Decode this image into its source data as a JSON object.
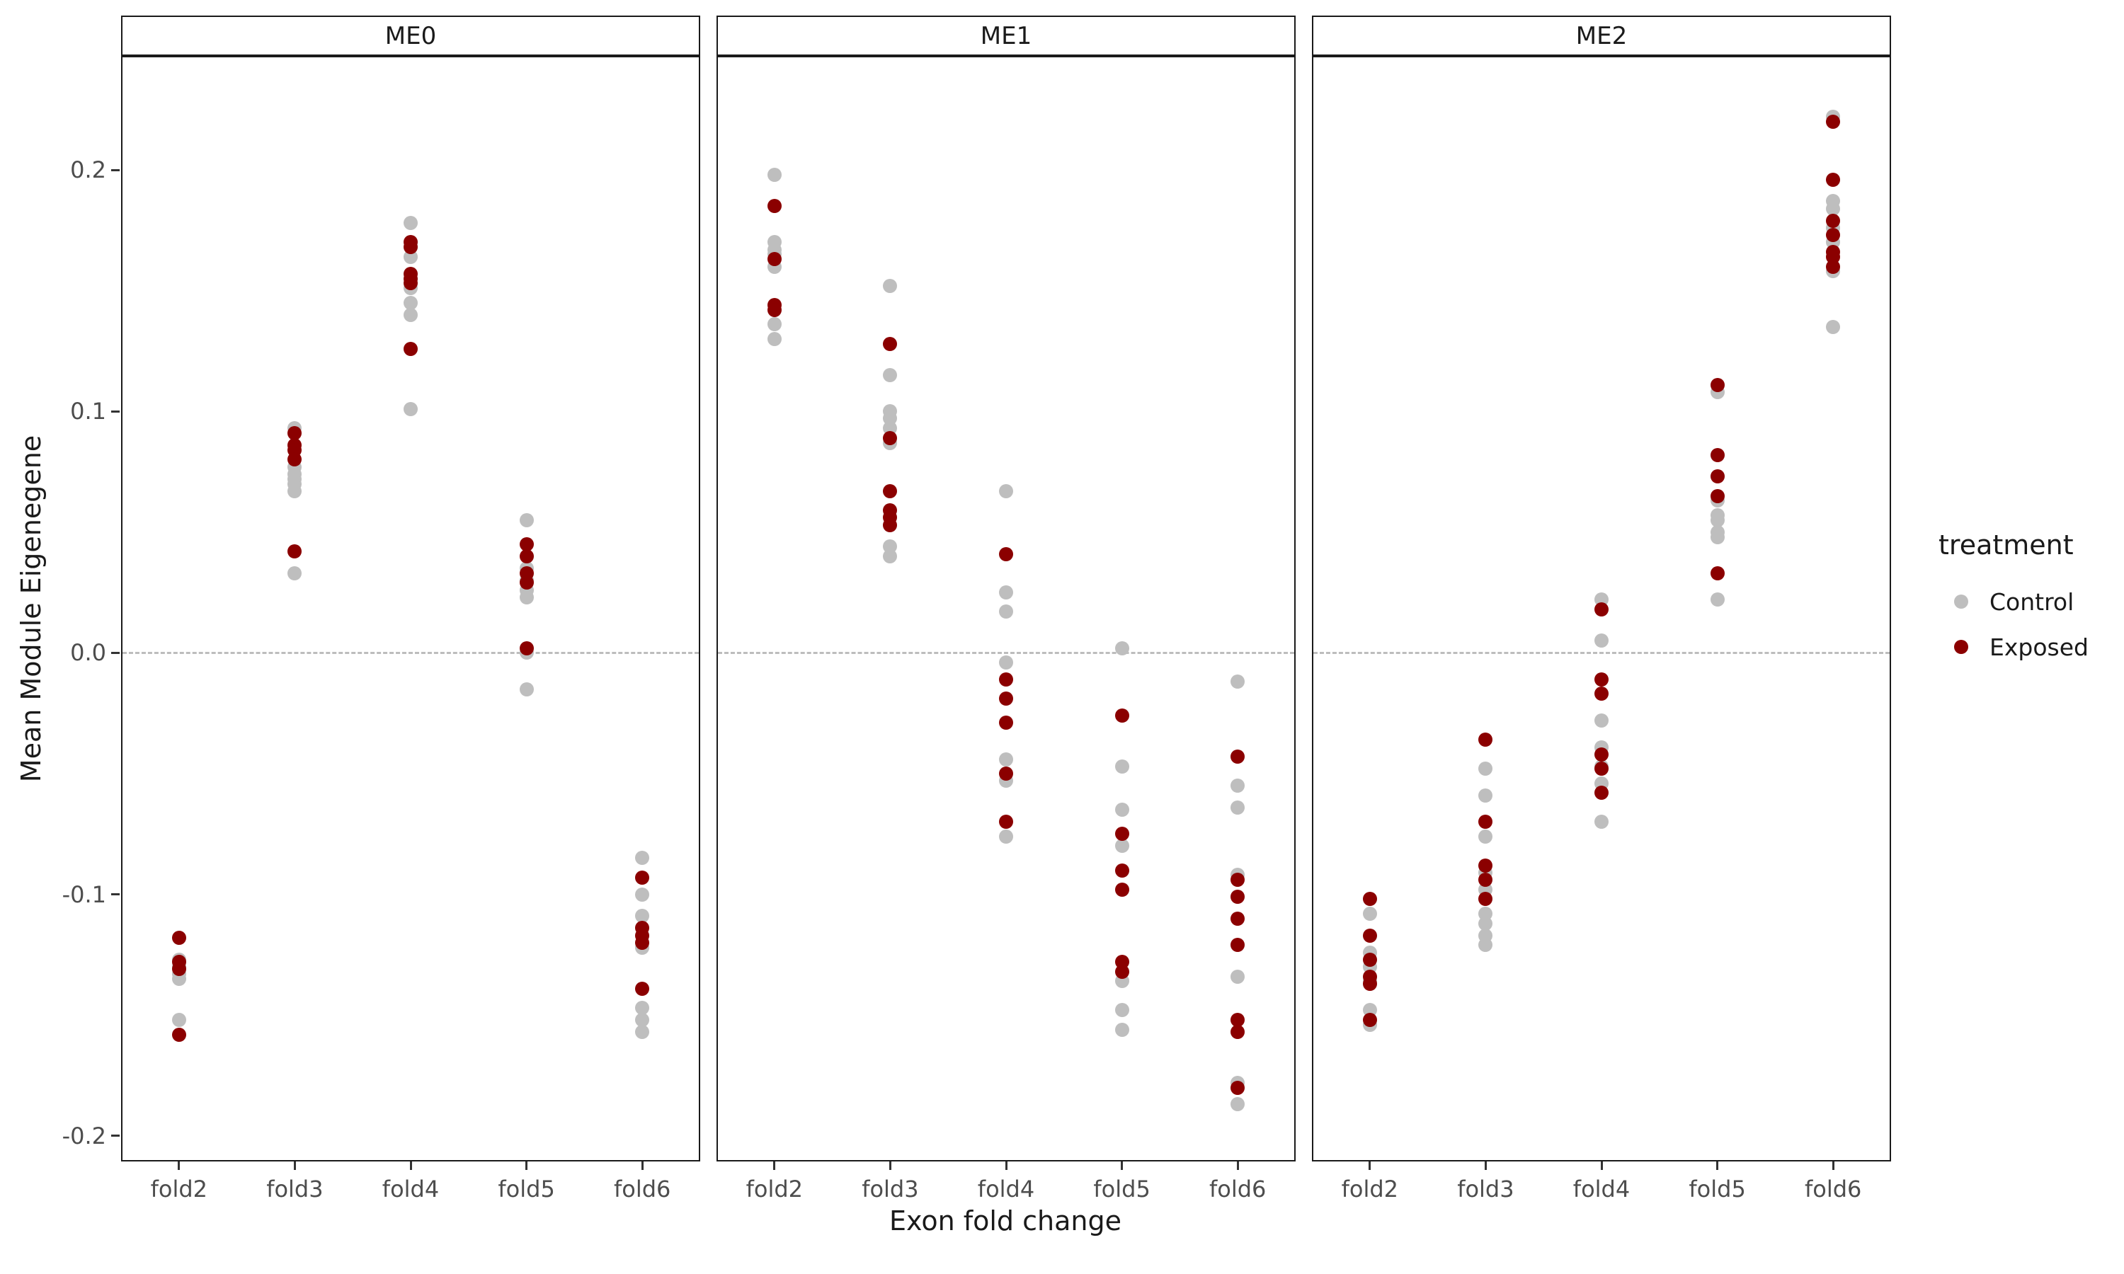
{
  "chart_data": {
    "type": "scatter",
    "title": "",
    "facets": [
      "ME0",
      "ME1",
      "ME2"
    ],
    "categories": [
      "fold2",
      "fold3",
      "fold4",
      "fold5",
      "fold6"
    ],
    "xlabel": "Exon fold change",
    "ylabel": "Mean Module Eigenegene",
    "ylim": [
      -0.2106,
      0.2472
    ],
    "yticks": [
      {
        "value": 0.2,
        "label": "0.2"
      },
      {
        "value": 0.1,
        "label": "0.1"
      },
      {
        "value": 0.0,
        "label": "0.0"
      },
      {
        "value": -0.1,
        "label": "-0.1"
      },
      {
        "value": -0.2,
        "label": "-0.2"
      }
    ],
    "hline": 0.0,
    "grid": false,
    "legend": {
      "title": "treatment",
      "position": "right",
      "entries": [
        {
          "label": "Control",
          "color": "#bebebe"
        },
        {
          "label": "Exposed",
          "color": "#8b0000"
        }
      ]
    },
    "series": [
      {
        "facet": "ME0",
        "category": "fold2",
        "treatment": "Control",
        "values": [
          -0.127,
          -0.13,
          -0.133,
          -0.135,
          -0.152
        ]
      },
      {
        "facet": "ME0",
        "category": "fold2",
        "treatment": "Exposed",
        "values": [
          -0.118,
          -0.128,
          -0.131,
          -0.158
        ]
      },
      {
        "facet": "ME0",
        "category": "fold3",
        "treatment": "Control",
        "values": [
          0.093,
          0.077,
          0.074,
          0.072,
          0.07,
          0.067,
          0.033
        ]
      },
      {
        "facet": "ME0",
        "category": "fold3",
        "treatment": "Exposed",
        "values": [
          0.091,
          0.086,
          0.084,
          0.08,
          0.042
        ]
      },
      {
        "facet": "ME0",
        "category": "fold4",
        "treatment": "Control",
        "values": [
          0.178,
          0.164,
          0.151,
          0.145,
          0.14,
          0.101
        ]
      },
      {
        "facet": "ME0",
        "category": "fold4",
        "treatment": "Exposed",
        "values": [
          0.17,
          0.168,
          0.157,
          0.155,
          0.153,
          0.126
        ]
      },
      {
        "facet": "ME0",
        "category": "fold5",
        "treatment": "Control",
        "values": [
          0.055,
          0.035,
          0.03,
          0.026,
          0.023,
          0.0,
          -0.015
        ]
      },
      {
        "facet": "ME0",
        "category": "fold5",
        "treatment": "Exposed",
        "values": [
          0.045,
          0.04,
          0.033,
          0.029,
          0.002
        ]
      },
      {
        "facet": "ME0",
        "category": "fold6",
        "treatment": "Control",
        "values": [
          -0.085,
          -0.1,
          -0.109,
          -0.122,
          -0.147,
          -0.152,
          -0.157
        ]
      },
      {
        "facet": "ME0",
        "category": "fold6",
        "treatment": "Exposed",
        "values": [
          -0.093,
          -0.114,
          -0.117,
          -0.12,
          -0.139
        ]
      },
      {
        "facet": "ME1",
        "category": "fold2",
        "treatment": "Control",
        "values": [
          0.198,
          0.17,
          0.167,
          0.165,
          0.16,
          0.136,
          0.13
        ]
      },
      {
        "facet": "ME1",
        "category": "fold2",
        "treatment": "Exposed",
        "values": [
          0.185,
          0.163,
          0.144,
          0.142
        ]
      },
      {
        "facet": "ME1",
        "category": "fold3",
        "treatment": "Control",
        "values": [
          0.152,
          0.115,
          0.1,
          0.097,
          0.093,
          0.087,
          0.044,
          0.04
        ]
      },
      {
        "facet": "ME1",
        "category": "fold3",
        "treatment": "Exposed",
        "values": [
          0.128,
          0.089,
          0.067,
          0.059,
          0.056,
          0.053
        ]
      },
      {
        "facet": "ME1",
        "category": "fold4",
        "treatment": "Control",
        "values": [
          0.067,
          0.025,
          0.017,
          -0.004,
          -0.044,
          -0.053,
          -0.076
        ]
      },
      {
        "facet": "ME1",
        "category": "fold4",
        "treatment": "Exposed",
        "values": [
          0.041,
          -0.011,
          -0.019,
          -0.029,
          -0.05,
          -0.07
        ]
      },
      {
        "facet": "ME1",
        "category": "fold5",
        "treatment": "Control",
        "values": [
          0.002,
          -0.047,
          -0.065,
          -0.08,
          -0.136,
          -0.148,
          -0.156
        ]
      },
      {
        "facet": "ME1",
        "category": "fold5",
        "treatment": "Exposed",
        "values": [
          -0.026,
          -0.075,
          -0.09,
          -0.098,
          -0.128,
          -0.132
        ]
      },
      {
        "facet": "ME1",
        "category": "fold6",
        "treatment": "Control",
        "values": [
          -0.012,
          -0.055,
          -0.064,
          -0.092,
          -0.134,
          -0.178,
          -0.187
        ]
      },
      {
        "facet": "ME1",
        "category": "fold6",
        "treatment": "Exposed",
        "values": [
          -0.043,
          -0.094,
          -0.101,
          -0.11,
          -0.121,
          -0.152,
          -0.157,
          -0.18
        ]
      },
      {
        "facet": "ME2",
        "category": "fold2",
        "treatment": "Control",
        "values": [
          -0.108,
          -0.124,
          -0.13,
          -0.136,
          -0.148,
          -0.154
        ]
      },
      {
        "facet": "ME2",
        "category": "fold2",
        "treatment": "Exposed",
        "values": [
          -0.102,
          -0.117,
          -0.127,
          -0.134,
          -0.137,
          -0.152
        ]
      },
      {
        "facet": "ME2",
        "category": "fold3",
        "treatment": "Control",
        "values": [
          -0.048,
          -0.059,
          -0.076,
          -0.091,
          -0.098,
          -0.108,
          -0.112,
          -0.117,
          -0.121
        ]
      },
      {
        "facet": "ME2",
        "category": "fold3",
        "treatment": "Exposed",
        "values": [
          -0.036,
          -0.07,
          -0.088,
          -0.094,
          -0.102
        ]
      },
      {
        "facet": "ME2",
        "category": "fold4",
        "treatment": "Control",
        "values": [
          0.022,
          0.005,
          -0.028,
          -0.039,
          -0.047,
          -0.054,
          -0.07
        ]
      },
      {
        "facet": "ME2",
        "category": "fold4",
        "treatment": "Exposed",
        "values": [
          0.018,
          -0.011,
          -0.017,
          -0.042,
          -0.048,
          -0.058
        ]
      },
      {
        "facet": "ME2",
        "category": "fold5",
        "treatment": "Control",
        "values": [
          0.108,
          0.063,
          0.057,
          0.055,
          0.05,
          0.048,
          0.022
        ]
      },
      {
        "facet": "ME2",
        "category": "fold5",
        "treatment": "Exposed",
        "values": [
          0.111,
          0.082,
          0.073,
          0.065,
          0.033
        ]
      },
      {
        "facet": "ME2",
        "category": "fold6",
        "treatment": "Control",
        "values": [
          0.222,
          0.187,
          0.184,
          0.176,
          0.17,
          0.158,
          0.135
        ]
      },
      {
        "facet": "ME2",
        "category": "fold6",
        "treatment": "Exposed",
        "values": [
          0.22,
          0.196,
          0.179,
          0.173,
          0.166,
          0.164,
          0.16
        ]
      }
    ]
  }
}
